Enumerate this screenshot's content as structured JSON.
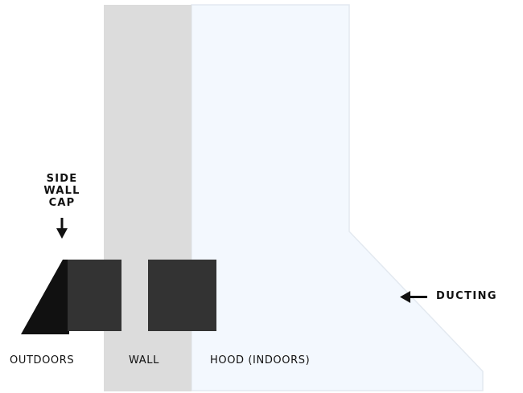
{
  "labels": {
    "cap_line1": "SIDE",
    "cap_line2": "WALL",
    "cap_line3": "CAP",
    "ducting": "DUCTING",
    "outdoors": "OUTDOORS",
    "wall": "WALL",
    "hood": "HOOD (INDOORS)"
  },
  "colors": {
    "wall_fill": "#dcdcdc",
    "hood_fill": "#f3f8fe",
    "hood_stroke": "#e3e9f0",
    "duct_fill": "#333333",
    "cap_flange": "#111111",
    "text": "#111111"
  }
}
